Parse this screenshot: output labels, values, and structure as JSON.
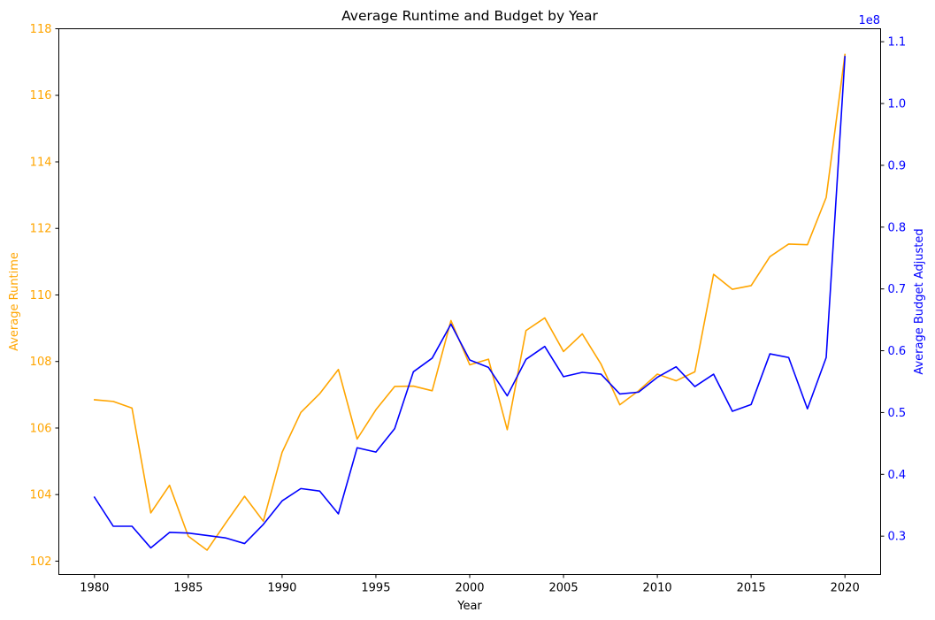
{
  "chart_data": {
    "type": "line",
    "title": "Average Runtime and Budget by Year",
    "xlabel": "Year",
    "ylabel_left": "Average Runtime",
    "ylabel_right": "Average Budget Adjusted",
    "right_axis_multiplier": "1e8",
    "xlim": [
      1978.1,
      2021.9
    ],
    "x_ticks": [
      1980,
      1985,
      1990,
      1995,
      2000,
      2005,
      2010,
      2015,
      2020
    ],
    "ylim_left": [
      101.6,
      118.0
    ],
    "y_ticks_left": [
      102,
      104,
      106,
      108,
      110,
      112,
      114,
      116,
      118
    ],
    "ylim_right": [
      0.238,
      1.121
    ],
    "y_ticks_right": [
      0.3,
      0.4,
      0.5,
      0.6,
      0.7,
      0.8,
      0.9,
      1.0,
      1.1
    ],
    "grid": false,
    "colors": {
      "runtime": "#ffa500",
      "budget": "#0000ff",
      "axes": "#000000"
    },
    "x": [
      1980,
      1981,
      1982,
      1983,
      1984,
      1985,
      1986,
      1987,
      1988,
      1989,
      1990,
      1991,
      1992,
      1993,
      1994,
      1995,
      1996,
      1997,
      1998,
      1999,
      2000,
      2001,
      2002,
      2003,
      2004,
      2005,
      2006,
      2007,
      2008,
      2009,
      2010,
      2011,
      2012,
      2013,
      2014,
      2015,
      2016,
      2017,
      2018,
      2019,
      2020
    ],
    "series": [
      {
        "key": "runtime",
        "axis": "left",
        "values": [
          106.85,
          106.8,
          106.6,
          103.45,
          104.28,
          102.75,
          102.33,
          103.15,
          103.95,
          103.2,
          105.27,
          106.47,
          107.03,
          107.76,
          105.67,
          106.55,
          107.25,
          107.26,
          107.12,
          109.23,
          107.9,
          108.07,
          105.95,
          108.93,
          109.31,
          108.3,
          108.83,
          107.92,
          106.7,
          107.12,
          107.62,
          107.42,
          107.69,
          110.62,
          110.17,
          110.28,
          111.15,
          111.53,
          111.51,
          112.93,
          117.23
        ]
      },
      {
        "key": "budget",
        "axis": "right",
        "values": [
          0.363,
          0.316,
          0.316,
          0.281,
          0.306,
          0.305,
          0.301,
          0.297,
          0.288,
          0.319,
          0.357,
          0.377,
          0.373,
          0.336,
          0.443,
          0.436,
          0.474,
          0.566,
          0.588,
          0.643,
          0.585,
          0.573,
          0.527,
          0.586,
          0.607,
          0.558,
          0.565,
          0.562,
          0.53,
          0.533,
          0.557,
          0.574,
          0.542,
          0.562,
          0.502,
          0.513,
          0.595,
          0.589,
          0.506,
          0.589,
          1.076
        ]
      }
    ]
  }
}
